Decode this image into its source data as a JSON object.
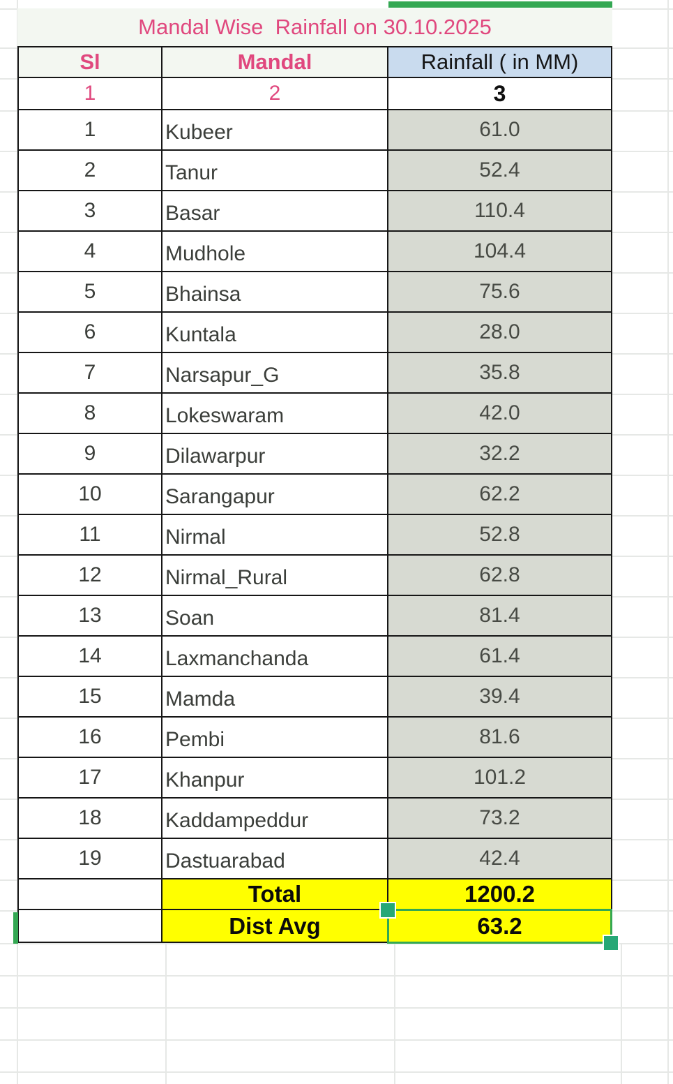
{
  "sheet": {
    "title": "Mandal Wise  Rainfall on 30.10.2025",
    "headers": {
      "sl": "Sl",
      "mandal": "Mandal",
      "rainfall": "Rainfall ( in MM)"
    },
    "column_numbers": [
      "1",
      "2",
      "3"
    ],
    "rows": [
      {
        "sl": "1",
        "mandal": "Kubeer",
        "rainfall": "61.0"
      },
      {
        "sl": "2",
        "mandal": "Tanur",
        "rainfall": "52.4"
      },
      {
        "sl": "3",
        "mandal": "Basar",
        "rainfall": "110.4"
      },
      {
        "sl": "4",
        "mandal": "Mudhole",
        "rainfall": "104.4"
      },
      {
        "sl": "5",
        "mandal": "Bhainsa",
        "rainfall": "75.6"
      },
      {
        "sl": "6",
        "mandal": "Kuntala",
        "rainfall": "28.0"
      },
      {
        "sl": "7",
        "mandal": "Narsapur_G",
        "rainfall": "35.8"
      },
      {
        "sl": "8",
        "mandal": "Lokeswaram",
        "rainfall": "42.0"
      },
      {
        "sl": "9",
        "mandal": "Dilawarpur",
        "rainfall": "32.2"
      },
      {
        "sl": "10",
        "mandal": "Sarangapur",
        "rainfall": "62.2"
      },
      {
        "sl": "11",
        "mandal": "Nirmal",
        "rainfall": "52.8"
      },
      {
        "sl": "12",
        "mandal": "Nirmal_Rural",
        "rainfall": "62.8"
      },
      {
        "sl": "13",
        "mandal": "Soan",
        "rainfall": "81.4"
      },
      {
        "sl": "14",
        "mandal": "Laxmanchanda",
        "rainfall": "61.4"
      },
      {
        "sl": "15",
        "mandal": "Mamda",
        "rainfall": "39.4"
      },
      {
        "sl": "16",
        "mandal": "Pembi",
        "rainfall": "81.6"
      },
      {
        "sl": "17",
        "mandal": "Khanpur",
        "rainfall": "101.2"
      },
      {
        "sl": "18",
        "mandal": "Kaddampeddur",
        "rainfall": "73.2"
      },
      {
        "sl": "19",
        "mandal": "Dastuarabad",
        "rainfall": "42.4"
      }
    ],
    "total_label": "Total",
    "total_value": "1200.2",
    "avg_label": "Dist Avg",
    "avg_value": "63.2",
    "colors": {
      "accent_pink": "#e0487e",
      "header_blue_bg": "#c9dbee",
      "rainfall_cell_bg": "#d7dad2",
      "highlight_yellow": "#ffff00",
      "title_bg": "#f3f7f1",
      "selection_green": "#34a853",
      "selection_handle_green": "#26a876",
      "table_border_black": "#161616",
      "faint_gridline": "#e6e8e6",
      "text_dark": "#3b3e3a"
    }
  }
}
